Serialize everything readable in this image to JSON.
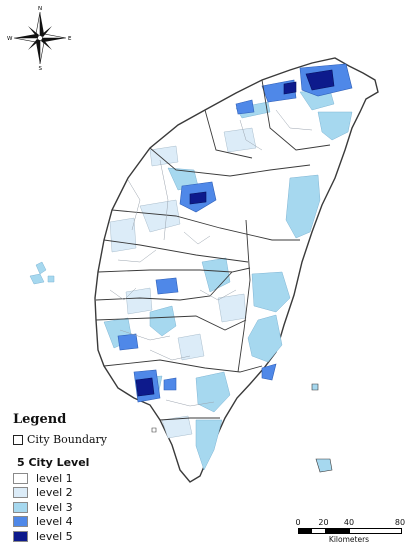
{
  "compass": {
    "north": "N",
    "south": "S",
    "east": "E",
    "west": "W"
  },
  "legend": {
    "title": "Legend",
    "boundary_label": "City Boundary",
    "section_title": "5 City Level",
    "levels": [
      {
        "label": "level 1",
        "color": "#ffffff"
      },
      {
        "label": "level 2",
        "color": "#dcecf8"
      },
      {
        "label": "level 3",
        "color": "#a6d8ef"
      },
      {
        "label": "level 4",
        "color": "#4f88e8"
      },
      {
        "label": "level 5",
        "color": "#0d1a8c"
      }
    ]
  },
  "scale_bar": {
    "ticks": [
      "0",
      "20",
      "40",
      "80"
    ],
    "unit": "Kilometers"
  },
  "colors": {
    "outline": "#3a3a3a",
    "district_line": "#9aa3ad"
  }
}
